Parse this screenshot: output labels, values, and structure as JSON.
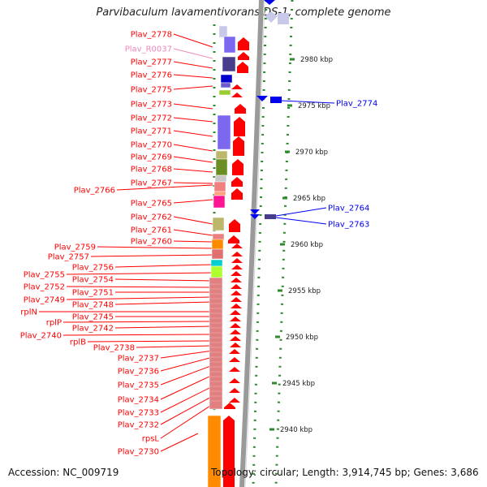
{
  "title": "Parvibaculum lavamentivorans DS-1, complete genome",
  "accession_text": "Accession: NC_009719",
  "topology_text": "Topology: circular; Length: 3,914,745 bp; Genes: 3,686",
  "kbp_ticks": [
    "2980 kbp",
    "2975 kbp",
    "2970 kbp",
    "2965 kbp",
    "2960 kbp",
    "2955 kbp",
    "2950 kbp",
    "2945 kbp",
    "2940 kbp"
  ],
  "left_labels": [
    "Plav_2778",
    "Plav_R0037",
    "Plav_2777",
    "Plav_2776",
    "Plav_2775",
    "Plav_2773",
    "Plav_2772",
    "Plav_2771",
    "Plav_2770",
    "Plav_2769",
    "Plav_2768",
    "Plav_2767",
    "Plav_2766",
    "Plav_2765",
    "Plav_2762",
    "Plav_2761",
    "Plav_2760",
    "Plav_2759",
    "Plav_2757",
    "Plav_2756",
    "Plav_2755",
    "Plav_2754",
    "Plav_2752",
    "Plav_2751",
    "Plav_2749",
    "Plav_2748",
    "rplN",
    "Plav_2745",
    "rplP",
    "Plav_2742",
    "Plav_2740",
    "rplB",
    "Plav_2738",
    "Plav_2737",
    "Plav_2736",
    "Plav_2735",
    "Plav_2734",
    "Plav_2733",
    "Plav_2732",
    "rpsL",
    "Plav_2730"
  ],
  "right_labels": [
    "Plav_2774",
    "Plav_2764",
    "Plav_2763"
  ],
  "colors": {
    "forward_gene": "#ff0000",
    "reverse_gene": "#0000ee",
    "rna_label": "#ee88bb",
    "tick": "#2d8a2d",
    "backbone": "#9a9a9a"
  }
}
